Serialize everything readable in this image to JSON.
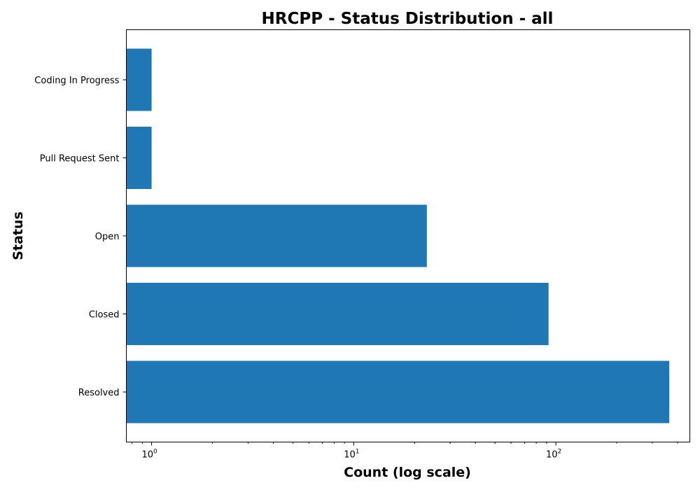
{
  "chart_data": {
    "type": "bar",
    "orientation": "horizontal",
    "title": "HRCPP - Status Distribution - all",
    "xlabel": "Count (log scale)",
    "ylabel": "Status",
    "x_scale": "log",
    "xlim": [
      0.75,
      460
    ],
    "categories": [
      "Resolved",
      "Closed",
      "Open",
      "Pull Request Sent",
      "Coding In Progress"
    ],
    "values": [
      364,
      92,
      23,
      1,
      1
    ],
    "x_ticks": [
      {
        "value": 1,
        "base": "10",
        "exp": "0"
      },
      {
        "value": 10,
        "base": "10",
        "exp": "1"
      },
      {
        "value": 100,
        "base": "10",
        "exp": "2"
      }
    ],
    "bar_color": "#1f77b4",
    "grid": false,
    "legend": "none"
  }
}
